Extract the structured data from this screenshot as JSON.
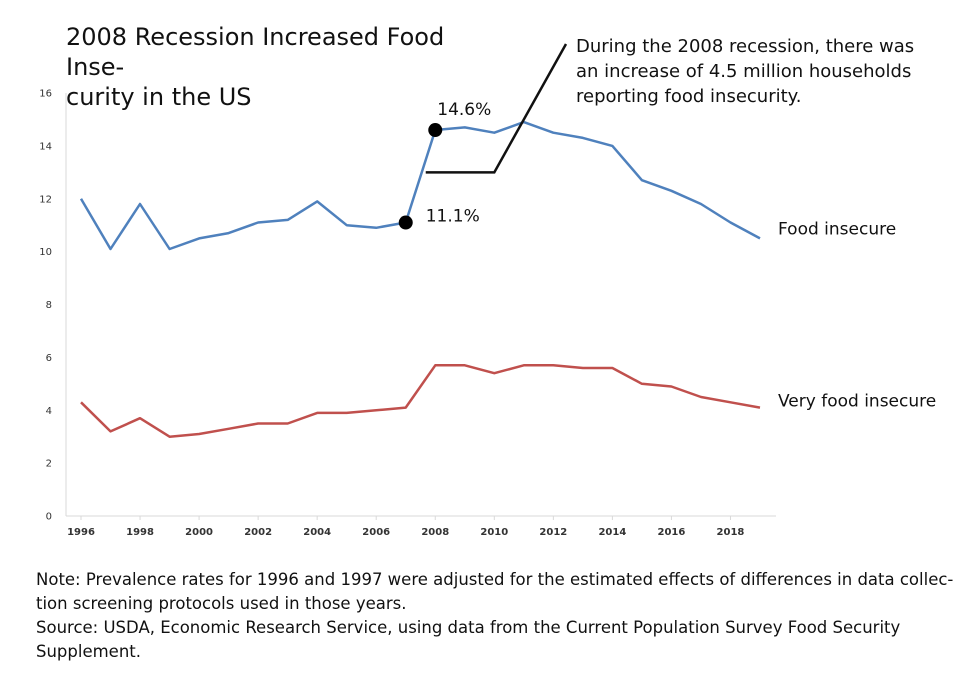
{
  "chart_data": {
    "type": "line",
    "title_lines": [
      "2008 Recession Increased Food Inse-",
      "curity in the US"
    ],
    "xlabel": "",
    "ylabel": "",
    "xlim": [
      1996,
      2019
    ],
    "ylim": [
      0,
      16
    ],
    "y_ticks": [
      "0",
      "2",
      "4",
      "6",
      "8",
      "10",
      "12",
      "14",
      "16"
    ],
    "x_ticks": [
      "1996",
      "1998",
      "2000",
      "2002",
      "2004",
      "2006",
      "2008",
      "2010",
      "2012",
      "2014",
      "2016",
      "2018"
    ],
    "grid": false,
    "x": [
      1996,
      1997,
      1998,
      1999,
      2000,
      2001,
      2002,
      2003,
      2004,
      2005,
      2006,
      2007,
      2008,
      2009,
      2010,
      2011,
      2012,
      2013,
      2014,
      2015,
      2016,
      2017,
      2018,
      2019
    ],
    "series": [
      {
        "name": "Food insecure",
        "color": "#4f81bd",
        "values": [
          12.0,
          10.1,
          11.8,
          10.1,
          10.5,
          10.7,
          11.1,
          11.2,
          11.9,
          11.0,
          10.9,
          11.1,
          14.6,
          14.7,
          14.5,
          14.9,
          14.5,
          14.3,
          14.0,
          12.7,
          12.3,
          11.8,
          11.1,
          10.5
        ]
      },
      {
        "name": "Very food insecure",
        "color": "#c0504d",
        "values": [
          4.3,
          3.2,
          3.7,
          3.0,
          3.1,
          3.3,
          3.5,
          3.5,
          3.9,
          3.9,
          4.0,
          4.1,
          5.7,
          5.7,
          5.4,
          5.7,
          5.7,
          5.6,
          5.6,
          5.0,
          4.9,
          4.5,
          4.3,
          4.1
        ]
      }
    ],
    "highlights": [
      {
        "year": 2007,
        "value": 11.1,
        "label": "11.1%"
      },
      {
        "year": 2008,
        "value": 14.6,
        "label": "14.6%"
      }
    ],
    "callout_lines": [
      "During the 2008 recession, there was",
      "an increase of 4.5 million households",
      "reporting food insecurity."
    ]
  },
  "note_lines": [
    "Note: Prevalence rates for 1996 and 1997 were adjusted for the estimated effects of differences in data collec-",
    "tion screening protocols used in those years.",
    "Source: USDA, Economic Research Service, using data from the Current Population Survey Food Security",
    "Supplement."
  ]
}
